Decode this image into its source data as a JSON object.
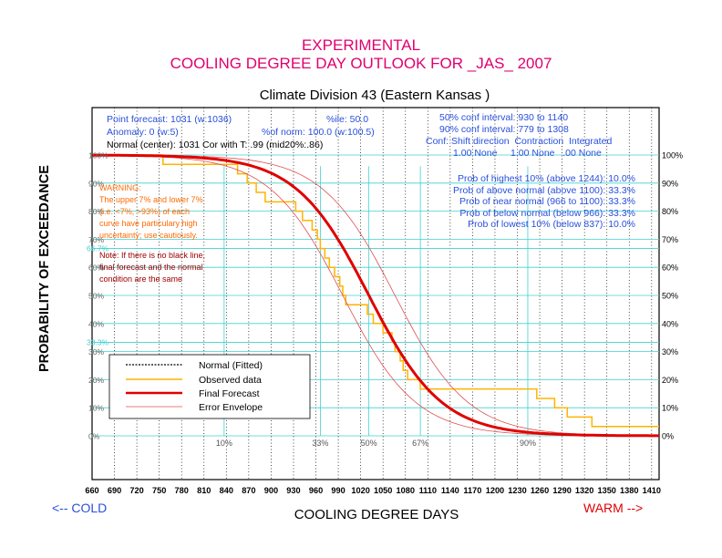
{
  "chart_data": {
    "type": "line",
    "title_line1": "EXPERIMENTAL",
    "title_line2": "COOLING DEGREE DAY OUTLOOK FOR _JAS_ 2007",
    "subtitle": "Climate Division 43 (Eastern Kansas )",
    "xlabel": "COOLING DEGREE DAYS",
    "ylabel": "PROBABILITY OF EXCEEDANCE",
    "cold_label": "<-- COLD",
    "warm_label": "WARM -->",
    "xlim": [
      660,
      1420
    ],
    "ylim": [
      0,
      100
    ],
    "x_ticks": [
      660,
      690,
      720,
      750,
      780,
      810,
      840,
      870,
      900,
      930,
      960,
      990,
      1020,
      1050,
      1080,
      1110,
      1140,
      1170,
      1200,
      1230,
      1260,
      1290,
      1320,
      1350,
      1380,
      1410
    ],
    "x_tick_labels": [
      "660",
      "690",
      "720",
      "750",
      "780",
      "810",
      "840",
      "870",
      "900",
      "930",
      "960",
      "990",
      "1020",
      "1050",
      "1080",
      "1110",
      "1140",
      "1170",
      "1200",
      "1230",
      "1260",
      "1290",
      "1320",
      "1350",
      "1380",
      "1410"
    ],
    "y_ticks": [
      0,
      10,
      20,
      30,
      40,
      50,
      60,
      70,
      80,
      90,
      100
    ],
    "y_tick_labels_right": [
      "0%",
      "10%",
      "20%",
      "30%",
      "40%",
      "50%",
      "60%",
      "70%",
      "80%",
      "90%",
      "100%"
    ],
    "y_tick_labels_left": [
      "0%",
      "10%",
      "20%",
      "30%",
      "40%",
      "50%",
      "60%",
      "70%",
      "80%",
      "90%",
      "100%"
    ],
    "cyan_y_labels": [
      {
        "value": 66.7,
        "label": "66.7%"
      },
      {
        "value": 33.3,
        "label": "33.3%"
      }
    ],
    "percentile_markers": [
      {
        "x": 837,
        "label": "10%"
      },
      {
        "x": 966,
        "label": "33%"
      },
      {
        "x": 1031,
        "label": "50%"
      },
      {
        "x": 1100,
        "label": "67%"
      },
      {
        "x": 1244,
        "label": "90%"
      }
    ],
    "info_left": [
      "Point forecast: 1031 (w:1036)",
      "Anomaly: 0 (w:5)",
      "Normal (center): 1031 Cor with T: .99 (mid20%:.86)"
    ],
    "info_mid": [
      "%ile: 50.0",
      "%of norm: 100.0 (w:100.5)"
    ],
    "conf_intervals": [
      "50% conf interval: 930 to 1140",
      "90% conf interval: 779 to 1308"
    ],
    "conf_header": "Conf: Shift direction  Contraction  Integrated",
    "conf_values": "1.00 None     1.00 None   .00 None",
    "probabilities": [
      "Prob of highest 10% (above 1244): 10.0%",
      "Prob of above normal (above 1100): 33.3%",
      "Prob of near normal (966 to 1100): 33.3%",
      "Prob of below normal (below 966): 33.3%",
      "Prob of lowest 10% (below 837): 10.0%"
    ],
    "warning_lines": [
      "WARNING:",
      "The upper 7% and lower 7%",
      "(i.e. <7%, >93%) of each",
      "curve have particulary high",
      "uncertainty; use cautiously."
    ],
    "note_lines": [
      "Note: If there is no black line,",
      "final forecast and  the normal",
      "condition are the same"
    ],
    "legend": [
      {
        "label": "Normal (Fitted)",
        "color": "#000000",
        "style": "dashed"
      },
      {
        "label": "Observed data",
        "color": "#ffb400",
        "style": "solid"
      },
      {
        "label": "Final Forecast",
        "color": "#e00000",
        "style": "thick"
      },
      {
        "label": "Error Envelope",
        "color": "#e05050",
        "style": "thin"
      }
    ],
    "forecast_center": 1031,
    "forecast_spread": 89,
    "envelope_offset": 35,
    "observed_steps": [
      [
        660,
        100
      ],
      [
        755,
        100
      ],
      [
        755,
        96.7
      ],
      [
        800,
        96.7
      ],
      [
        800,
        96.7
      ],
      [
        855,
        96.7
      ],
      [
        855,
        93.3
      ],
      [
        868,
        93.3
      ],
      [
        868,
        90
      ],
      [
        880,
        90
      ],
      [
        880,
        86.7
      ],
      [
        892,
        86.7
      ],
      [
        892,
        83.3
      ],
      [
        933,
        83.3
      ],
      [
        933,
        80
      ],
      [
        942,
        80
      ],
      [
        942,
        76.7
      ],
      [
        955,
        76.7
      ],
      [
        955,
        73.3
      ],
      [
        962,
        73.3
      ],
      [
        962,
        70
      ],
      [
        966,
        70
      ],
      [
        966,
        66.7
      ],
      [
        972,
        66.7
      ],
      [
        972,
        63.3
      ],
      [
        978,
        63.3
      ],
      [
        978,
        60
      ],
      [
        985,
        60
      ],
      [
        985,
        56.7
      ],
      [
        992,
        56.7
      ],
      [
        992,
        53.3
      ],
      [
        996,
        53.3
      ],
      [
        996,
        50
      ],
      [
        1000,
        50
      ],
      [
        1000,
        46.7
      ],
      [
        1029,
        46.7
      ],
      [
        1029,
        43.3
      ],
      [
        1037,
        43.3
      ],
      [
        1037,
        40
      ],
      [
        1050,
        40
      ],
      [
        1050,
        36.7
      ],
      [
        1062,
        36.7
      ],
      [
        1062,
        33.3
      ],
      [
        1066,
        33.3
      ],
      [
        1066,
        30
      ],
      [
        1073,
        30
      ],
      [
        1073,
        26.7
      ],
      [
        1077,
        26.7
      ],
      [
        1077,
        23.3
      ],
      [
        1083,
        23.3
      ],
      [
        1083,
        20
      ],
      [
        1100,
        20
      ],
      [
        1100,
        16.7
      ],
      [
        1256,
        16.7
      ],
      [
        1256,
        13.3
      ],
      [
        1280,
        13.3
      ],
      [
        1280,
        10
      ],
      [
        1297,
        10
      ],
      [
        1297,
        6.7
      ],
      [
        1330,
        6.7
      ],
      [
        1330,
        3.3
      ],
      [
        1420,
        3.3
      ]
    ]
  },
  "colors": {
    "title": "#e0006e",
    "info": "#2850dc",
    "warning": "#ff6a00",
    "note": "#a00000",
    "cyan": "#40d0d0",
    "cold": "#2850dc",
    "warm": "#e00000",
    "grid": "#000000"
  }
}
